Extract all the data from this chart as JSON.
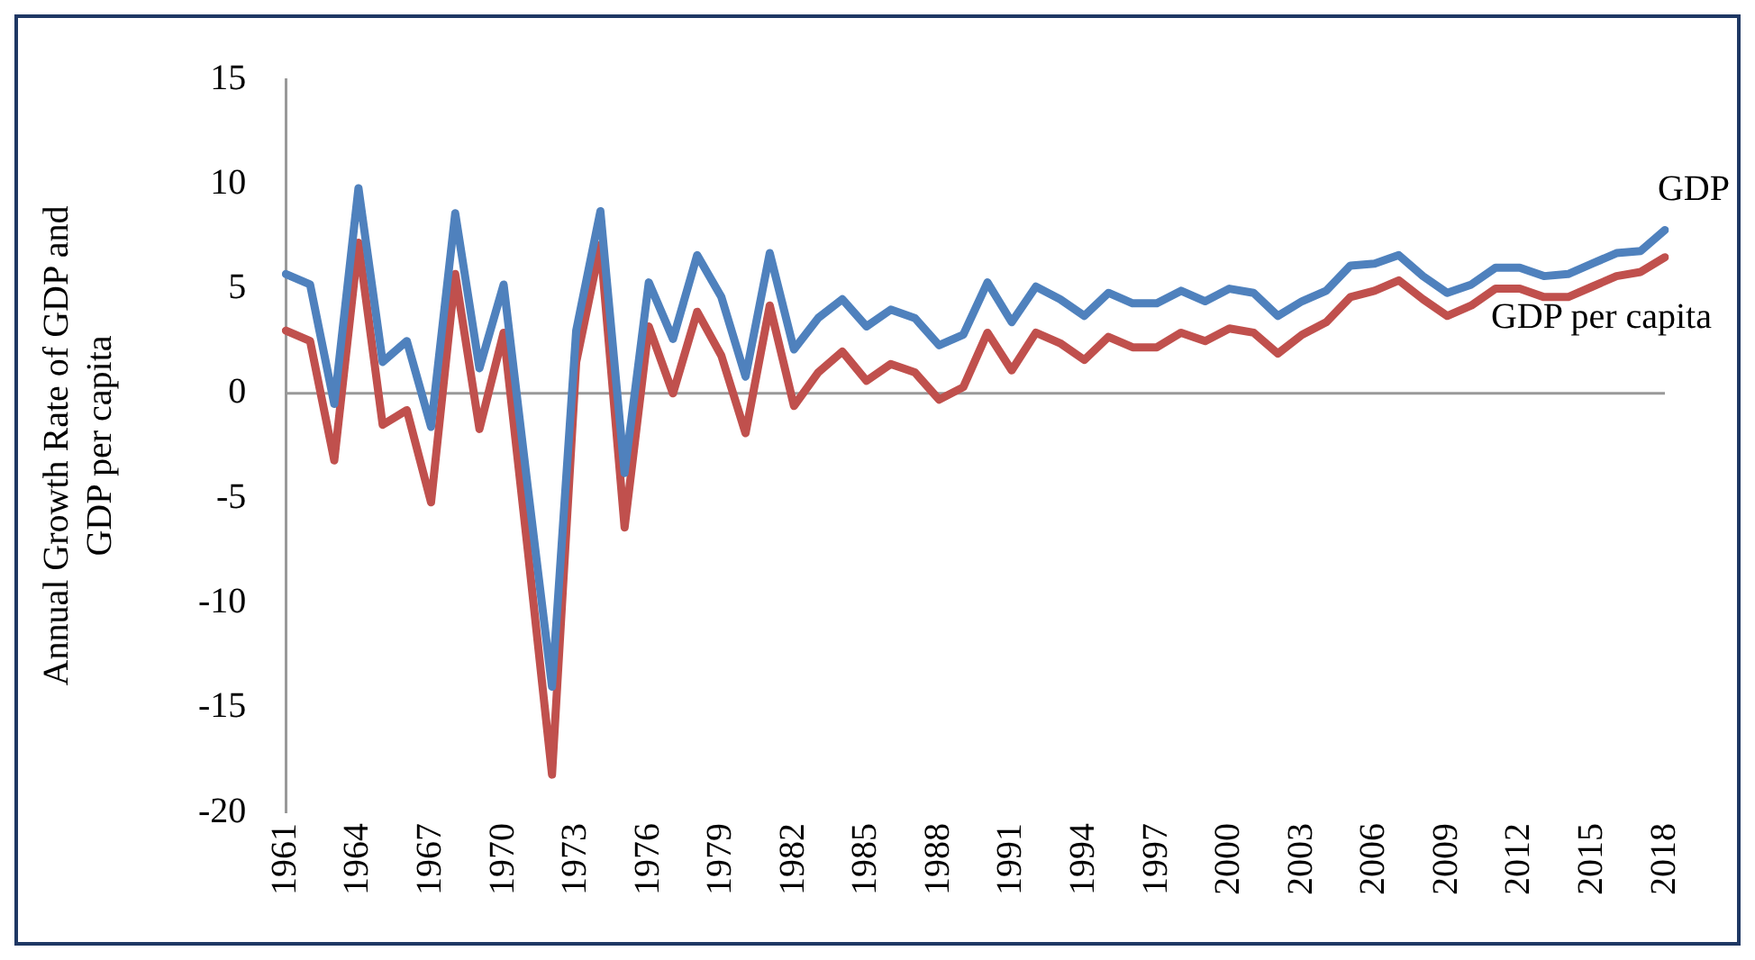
{
  "chart_data": {
    "type": "line",
    "ylabel": "Annual Growth Rate of GDP and GDP per capita",
    "categories": [
      "1961",
      null,
      null,
      "1964",
      null,
      null,
      "1967",
      null,
      null,
      "1970",
      null,
      null,
      "1973",
      null,
      null,
      "1976",
      null,
      null,
      "1979",
      null,
      null,
      "1982",
      null,
      null,
      "1985",
      null,
      null,
      "1988",
      null,
      null,
      "1991",
      null,
      null,
      "1994",
      null,
      null,
      "1997",
      null,
      null,
      "2000",
      null,
      null,
      "2003",
      null,
      null,
      "2006",
      null,
      null,
      "2009",
      null,
      null,
      "2012",
      null,
      null,
      "2015",
      null,
      null,
      "2018"
    ],
    "series": [
      {
        "name": "GDP",
        "color": "#4f81bd",
        "values": [
          5.7,
          5.2,
          -0.5,
          9.8,
          1.5,
          2.5,
          -1.6,
          8.6,
          1.2,
          5.2,
          -4.5,
          -14.0,
          3.0,
          8.7,
          -3.8,
          5.3,
          2.6,
          6.6,
          4.6,
          0.8,
          6.7,
          2.1,
          3.6,
          4.5,
          3.2,
          4.0,
          3.6,
          2.3,
          2.8,
          5.3,
          3.4,
          5.1,
          4.5,
          3.7,
          4.8,
          4.3,
          4.3,
          4.9,
          4.4,
          5.0,
          4.8,
          3.7,
          4.4,
          4.9,
          6.1,
          6.2,
          6.6,
          5.6,
          4.8,
          5.2,
          6.0,
          6.0,
          5.6,
          5.7,
          6.2,
          6.7,
          6.8,
          7.8
        ]
      },
      {
        "name": "GDP per capita",
        "color": "#c0504d",
        "values": [
          3.0,
          2.5,
          -3.2,
          7.2,
          -1.5,
          -0.8,
          -5.2,
          5.7,
          -1.7,
          2.9,
          -7.5,
          -18.2,
          1.5,
          7.1,
          -6.4,
          3.2,
          0.0,
          3.9,
          1.8,
          -1.9,
          4.2,
          -0.6,
          1.0,
          2.0,
          0.6,
          1.4,
          1.0,
          -0.3,
          0.3,
          2.9,
          1.1,
          2.9,
          2.4,
          1.6,
          2.7,
          2.2,
          2.2,
          2.9,
          2.5,
          3.1,
          2.9,
          1.9,
          2.8,
          3.4,
          4.6,
          4.9,
          5.4,
          4.5,
          3.7,
          4.2,
          5.0,
          5.0,
          4.6,
          4.6,
          5.1,
          5.6,
          5.8,
          6.5
        ]
      }
    ],
    "ref_lines": [
      {
        "axis": "y",
        "value": 0,
        "color": "#999999"
      }
    ],
    "ylim": [
      -20,
      15
    ],
    "yticks": [
      -20,
      -15,
      -10,
      -5,
      0,
      5,
      10,
      15
    ],
    "grid": false,
    "legend": false,
    "marker": "none",
    "line_style": "solid"
  }
}
